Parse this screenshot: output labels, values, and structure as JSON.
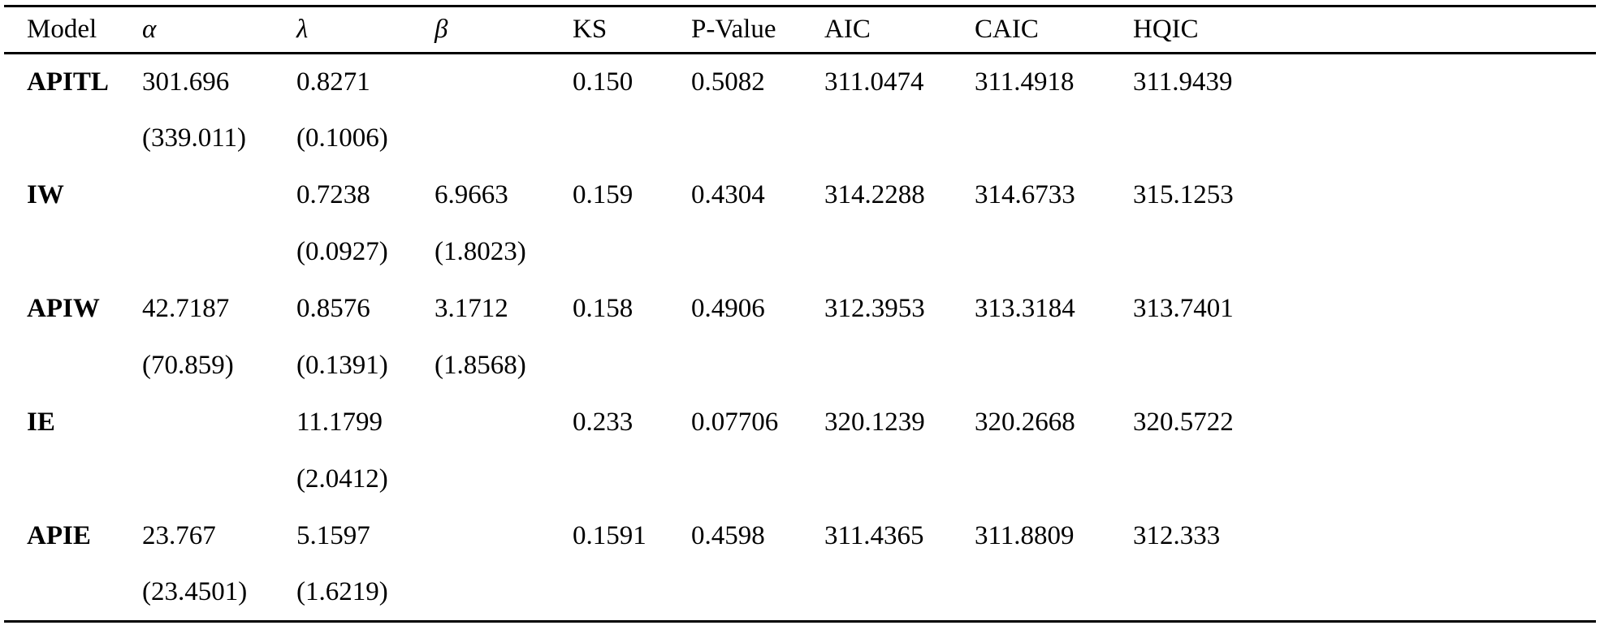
{
  "table": {
    "header": {
      "model": "Model",
      "alpha": "α",
      "lambda": "λ",
      "beta": "β",
      "ks": "KS",
      "pvalue": "P-Value",
      "aic": "AIC",
      "caic": "CAIC",
      "hqic": "HQIC"
    },
    "rows": [
      {
        "model": "APITL",
        "alpha": "301.696",
        "alpha_se": "(339.011)",
        "lambda": "0.8271",
        "lambda_se": "(0.1006)",
        "beta": "",
        "beta_se": "",
        "ks": "0.150",
        "pvalue": "0.5082",
        "aic": "311.0474",
        "caic": "311.4918",
        "hqic": "311.9439"
      },
      {
        "model": "IW",
        "alpha": "",
        "alpha_se": "",
        "lambda": "0.7238",
        "lambda_se": "(0.0927)",
        "beta": "6.9663",
        "beta_se": "(1.8023)",
        "ks": "0.159",
        "pvalue": "0.4304",
        "aic": "314.2288",
        "caic": "314.6733",
        "hqic": "315.1253"
      },
      {
        "model": "APIW",
        "alpha": "42.7187",
        "alpha_se": "(70.859)",
        "lambda": "0.8576",
        "lambda_se": "(0.1391)",
        "beta": "3.1712",
        "beta_se": "(1.8568)",
        "ks": "0.158",
        "pvalue": "0.4906",
        "aic": "312.3953",
        "caic": "313.3184",
        "hqic": "313.7401"
      },
      {
        "model": "IE",
        "alpha": "",
        "alpha_se": "",
        "lambda": "11.1799",
        "lambda_se": "(2.0412)",
        "beta": "",
        "beta_se": "",
        "ks": "0.233",
        "pvalue": "0.07706",
        "aic": "320.1239",
        "caic": "320.2668",
        "hqic": "320.5722"
      },
      {
        "model": "APIE",
        "alpha": "23.767",
        "alpha_se": "(23.4501)",
        "lambda": "5.1597",
        "lambda_se": "(1.6219)",
        "beta": "",
        "beta_se": "",
        "ks": "0.1591",
        "pvalue": "0.4598",
        "aic": "311.4365",
        "caic": "311.8809",
        "hqic": "312.333"
      }
    ]
  }
}
